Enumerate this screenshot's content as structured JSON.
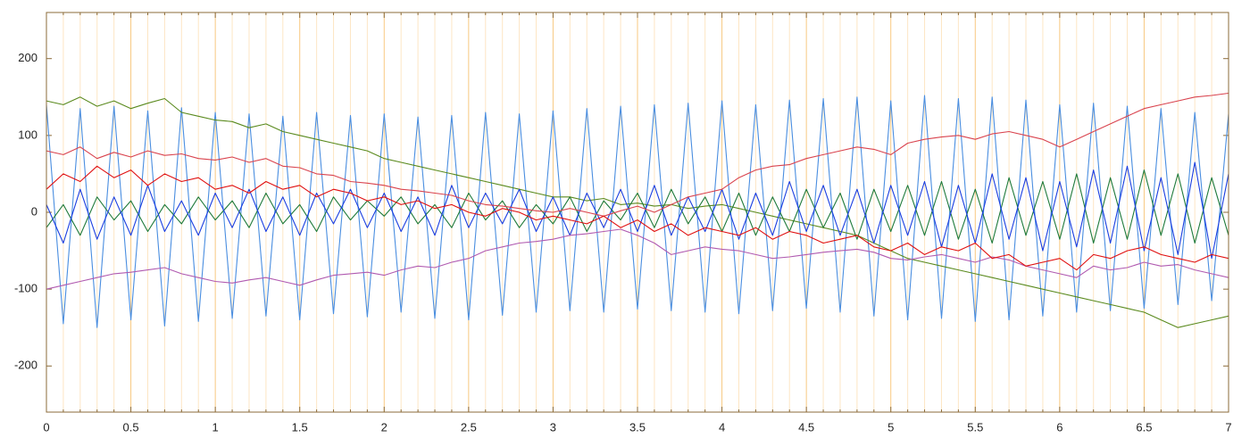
{
  "chart_data": {
    "type": "line",
    "x": [
      0,
      0.1,
      0.2,
      0.3,
      0.4,
      0.5,
      0.6,
      0.7,
      0.8,
      0.9,
      1,
      1.1,
      1.2,
      1.3,
      1.4,
      1.5,
      1.6,
      1.7,
      1.8,
      1.9,
      2,
      2.1,
      2.2,
      2.3,
      2.4,
      2.5,
      2.6,
      2.7,
      2.8,
      2.9,
      3,
      3.1,
      3.2,
      3.3,
      3.4,
      3.5,
      3.6,
      3.7,
      3.8,
      3.9,
      4,
      4.1,
      4.2,
      4.3,
      4.4,
      4.5,
      4.6,
      4.7,
      4.8,
      4.9,
      5,
      5.1,
      5.2,
      5.3,
      5.4,
      5.5,
      5.6,
      5.7,
      5.8,
      5.9,
      6,
      6.1,
      6.2,
      6.3,
      6.4,
      6.5,
      6.6,
      6.7,
      6.8,
      6.9,
      7
    ],
    "series": [
      {
        "color": "#4a8ee0",
        "values": [
          140,
          -145,
          135,
          -150,
          138,
          -140,
          132,
          -148,
          136,
          -142,
          130,
          -138,
          128,
          -135,
          125,
          -140,
          130,
          -132,
          126,
          -136,
          128,
          -130,
          124,
          -138,
          126,
          -140,
          130,
          -134,
          128,
          -130,
          132,
          -128,
          135,
          -130,
          138,
          -126,
          140,
          -128,
          142,
          -130,
          145,
          -132,
          140,
          -128,
          146,
          -125,
          148,
          -130,
          150,
          -135,
          145,
          -140,
          152,
          -138,
          148,
          -142,
          150,
          -140,
          146,
          -135,
          140,
          -130,
          142,
          -128,
          138,
          -125,
          135,
          -120,
          130,
          -115,
          128
        ]
      },
      {
        "color": "#5a8a1e",
        "values": [
          145,
          140,
          150,
          138,
          145,
          135,
          142,
          148,
          130,
          125,
          120,
          118,
          110,
          115,
          105,
          100,
          95,
          90,
          85,
          80,
          70,
          65,
          60,
          55,
          50,
          45,
          40,
          35,
          30,
          25,
          20,
          20,
          15,
          18,
          10,
          12,
          8,
          10,
          5,
          8,
          10,
          5,
          0,
          -5,
          -10,
          -15,
          -20,
          -25,
          -30,
          -40,
          -50,
          -60,
          -65,
          -70,
          -75,
          -80,
          -85,
          -90,
          -95,
          -100,
          -105,
          -110,
          -115,
          -120,
          -125,
          -130,
          -140,
          -150,
          -145,
          -140,
          -135
        ]
      },
      {
        "color": "#1f7a3a",
        "values": [
          -20,
          10,
          -30,
          20,
          -10,
          15,
          -25,
          10,
          -15,
          20,
          -10,
          15,
          -20,
          25,
          -15,
          10,
          -25,
          20,
          -10,
          15,
          -5,
          20,
          -15,
          10,
          -20,
          25,
          -10,
          15,
          -20,
          10,
          -15,
          20,
          -25,
          15,
          -10,
          25,
          -20,
          30,
          -15,
          20,
          -25,
          25,
          -30,
          20,
          -25,
          30,
          -20,
          25,
          -35,
          30,
          -25,
          35,
          -30,
          40,
          -35,
          30,
          -40,
          45,
          -30,
          40,
          -35,
          50,
          -40,
          45,
          -35,
          55,
          -30,
          50,
          -40,
          45,
          -30
        ]
      },
      {
        "color": "#1a3ee0",
        "values": [
          10,
          -40,
          30,
          -35,
          20,
          -30,
          35,
          -25,
          15,
          -30,
          25,
          -20,
          30,
          -25,
          20,
          -30,
          25,
          -15,
          30,
          -20,
          25,
          -25,
          20,
          -30,
          35,
          -20,
          25,
          -15,
          30,
          -25,
          20,
          -30,
          25,
          -20,
          30,
          -25,
          35,
          -30,
          20,
          -25,
          30,
          -35,
          25,
          -30,
          40,
          -25,
          35,
          -30,
          30,
          -40,
          35,
          -30,
          40,
          -45,
          35,
          -40,
          50,
          -35,
          45,
          -50,
          40,
          -45,
          55,
          -40,
          60,
          -50,
          45,
          -55,
          65,
          -60,
          50
        ]
      },
      {
        "color": "#b05ab0",
        "values": [
          -100,
          -95,
          -90,
          -85,
          -80,
          -78,
          -75,
          -72,
          -80,
          -85,
          -90,
          -92,
          -88,
          -85,
          -90,
          -95,
          -88,
          -82,
          -80,
          -78,
          -82,
          -75,
          -70,
          -72,
          -65,
          -60,
          -50,
          -45,
          -40,
          -38,
          -35,
          -30,
          -28,
          -25,
          -22,
          -30,
          -40,
          -55,
          -50,
          -45,
          -48,
          -50,
          -55,
          -60,
          -58,
          -55,
          -52,
          -50,
          -48,
          -52,
          -60,
          -62,
          -58,
          -55,
          -60,
          -65,
          -58,
          -62,
          -70,
          -75,
          -80,
          -85,
          -70,
          -75,
          -72,
          -65,
          -70,
          -68,
          -75,
          -80,
          -85
        ]
      },
      {
        "color": "#d9434e",
        "values": [
          80,
          75,
          85,
          70,
          78,
          72,
          80,
          74,
          76,
          70,
          68,
          72,
          65,
          70,
          60,
          58,
          50,
          48,
          40,
          38,
          35,
          30,
          28,
          25,
          22,
          15,
          10,
          8,
          5,
          2,
          0,
          5,
          0,
          -5,
          2,
          8,
          0,
          10,
          20,
          25,
          30,
          45,
          55,
          60,
          62,
          70,
          75,
          80,
          85,
          82,
          75,
          90,
          95,
          98,
          100,
          95,
          102,
          105,
          100,
          95,
          85,
          95,
          105,
          115,
          125,
          135,
          140,
          145,
          150,
          152,
          155
        ]
      },
      {
        "color": "#e01010",
        "values": [
          30,
          50,
          40,
          60,
          45,
          55,
          35,
          50,
          40,
          45,
          30,
          35,
          25,
          40,
          30,
          35,
          20,
          30,
          25,
          15,
          20,
          10,
          15,
          5,
          10,
          0,
          -5,
          5,
          0,
          -10,
          -5,
          -10,
          -15,
          -5,
          -20,
          -10,
          -25,
          -15,
          -30,
          -20,
          -25,
          -30,
          -20,
          -35,
          -25,
          -30,
          -40,
          -35,
          -30,
          -45,
          -50,
          -40,
          -55,
          -45,
          -50,
          -40,
          -60,
          -55,
          -70,
          -65,
          -60,
          -75,
          -55,
          -60,
          -50,
          -45,
          -55,
          -60,
          -65,
          -55,
          -60
        ]
      }
    ],
    "xlim": [
      0,
      7
    ],
    "xticks": [
      0,
      0.5,
      1,
      1.5,
      2,
      2.5,
      3,
      3.5,
      4,
      4.5,
      5,
      5.5,
      6,
      6.5,
      7
    ],
    "xminorticks": [
      0.1,
      0.2,
      0.3,
      0.4,
      0.6,
      0.7,
      0.8,
      0.9,
      1.1,
      1.2,
      1.3,
      1.4,
      1.6,
      1.7,
      1.8,
      1.9,
      2.1,
      2.2,
      2.3,
      2.4,
      2.6,
      2.7,
      2.8,
      2.9,
      3.1,
      3.2,
      3.3,
      3.4,
      3.6,
      3.7,
      3.8,
      3.9,
      4.1,
      4.2,
      4.3,
      4.4,
      4.6,
      4.7,
      4.8,
      4.9,
      5.1,
      5.2,
      5.3,
      5.4,
      5.6,
      5.7,
      5.8,
      5.9,
      6.1,
      6.2,
      6.3,
      6.4,
      6.6,
      6.7,
      6.8,
      6.9
    ],
    "ylim": [
      -260,
      260
    ],
    "yticks": [
      -200,
      -100,
      0,
      100,
      200
    ],
    "grid": true
  }
}
